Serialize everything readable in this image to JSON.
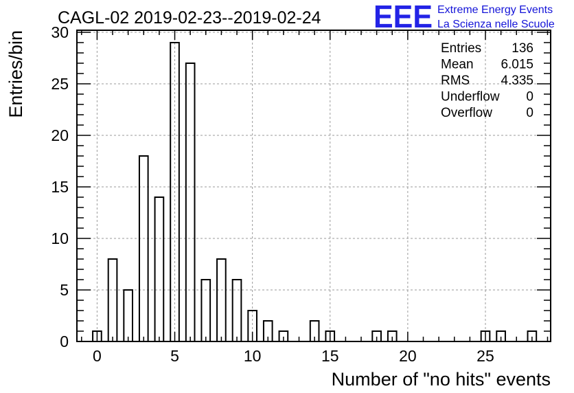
{
  "chart_data": {
    "type": "bar",
    "title": "CAGL-02 2019-02-23--2019-02-24",
    "xlabel": "Number of \"no hits\" events",
    "ylabel": "Entries/bin",
    "xlim": [
      -1.3,
      29.2
    ],
    "ylim": [
      0,
      30.2
    ],
    "x_ticks": [
      0,
      5,
      10,
      15,
      20,
      25
    ],
    "y_ticks": [
      0,
      5,
      10,
      15,
      20,
      25,
      30
    ],
    "grid": true,
    "bins": [
      {
        "x": 0,
        "value": 1
      },
      {
        "x": 1,
        "value": 8
      },
      {
        "x": 2,
        "value": 5
      },
      {
        "x": 3,
        "value": 18
      },
      {
        "x": 4,
        "value": 14
      },
      {
        "x": 5,
        "value": 29
      },
      {
        "x": 6,
        "value": 27
      },
      {
        "x": 7,
        "value": 6
      },
      {
        "x": 8,
        "value": 8
      },
      {
        "x": 9,
        "value": 6
      },
      {
        "x": 10,
        "value": 3
      },
      {
        "x": 11,
        "value": 2
      },
      {
        "x": 12,
        "value": 1
      },
      {
        "x": 14,
        "value": 2
      },
      {
        "x": 15,
        "value": 1
      },
      {
        "x": 18,
        "value": 1
      },
      {
        "x": 19,
        "value": 1
      },
      {
        "x": 25,
        "value": 1
      },
      {
        "x": 26,
        "value": 1
      },
      {
        "x": 28,
        "value": 1
      }
    ],
    "stats_box": {
      "placement": "top-right",
      "rows": [
        {
          "label": "Entries",
          "value": "136"
        },
        {
          "label": "Mean",
          "value": "6.015"
        },
        {
          "label": "RMS",
          "value": "4.335"
        },
        {
          "label": "Underflow",
          "value": "0"
        },
        {
          "label": "Overflow",
          "value": "0"
        }
      ]
    },
    "colors": {
      "bar_outline": "#000000",
      "grid": "#9a9a9a",
      "logo": "#2323e6"
    }
  },
  "logo": {
    "mark": "EEE",
    "line1": "Extreme Energy Events",
    "line2": "La Scienza nelle Scuole"
  }
}
